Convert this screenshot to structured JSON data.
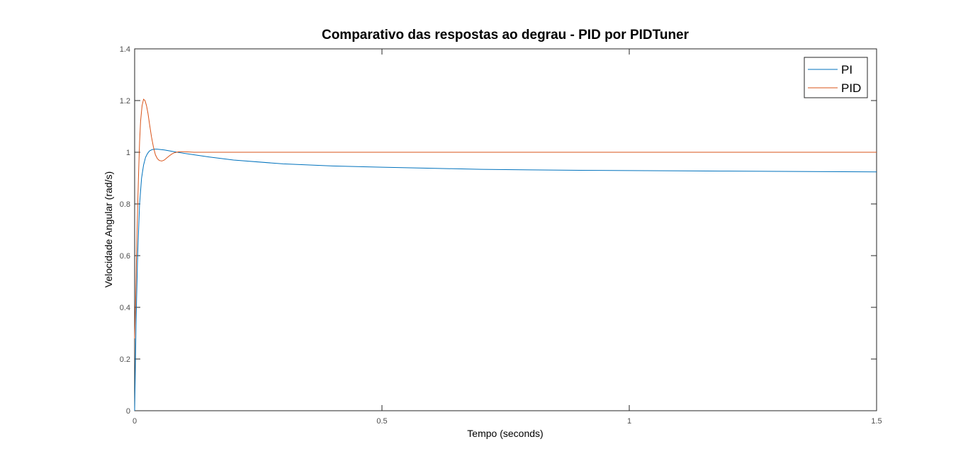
{
  "chart_data": {
    "type": "line",
    "title": "Comparativo das respostas ao degrau - PID por PIDTuner",
    "xlabel": "Tempo (seconds)",
    "ylabel": "Velocidade Angular (rad/s)",
    "xlim": [
      0,
      1.5
    ],
    "ylim": [
      0,
      1.4
    ],
    "xticks": [
      0,
      0.5,
      1,
      1.5
    ],
    "xtick_labels": [
      "0",
      "0.5",
      "1",
      "1.5"
    ],
    "yticks": [
      0,
      0.2,
      0.4,
      0.6,
      0.8,
      1,
      1.2,
      1.4
    ],
    "ytick_labels": [
      "0",
      "0.2",
      "0.4",
      "0.6",
      "0.8",
      "1",
      "1.2",
      "1.4"
    ],
    "grid": false,
    "legend_position": "top-right",
    "series": [
      {
        "name": "PI",
        "color": "#0072bd",
        "x": [
          0,
          0.003,
          0.006,
          0.01,
          0.014,
          0.018,
          0.022,
          0.026,
          0.03,
          0.035,
          0.04,
          0.045,
          0.05,
          0.06,
          0.08,
          0.1,
          0.15,
          0.2,
          0.3,
          0.4,
          0.5,
          0.6,
          0.7,
          0.8,
          0.9,
          1.0,
          1.1,
          1.2,
          1.3,
          1.4,
          1.5
        ],
        "y": [
          0,
          0.35,
          0.6,
          0.8,
          0.9,
          0.95,
          0.98,
          0.995,
          1.005,
          1.01,
          1.012,
          1.012,
          1.011,
          1.009,
          1.002,
          0.996,
          0.982,
          0.97,
          0.955,
          0.947,
          0.942,
          0.938,
          0.934,
          0.932,
          0.93,
          0.929,
          0.928,
          0.927,
          0.926,
          0.925,
          0.924
        ]
      },
      {
        "name": "PID",
        "color": "#d95319",
        "x": [
          0,
          0.002,
          0.004,
          0.006,
          0.008,
          0.01,
          0.012,
          0.015,
          0.018,
          0.021,
          0.024,
          0.027,
          0.03,
          0.034,
          0.038,
          0.042,
          0.046,
          0.05,
          0.055,
          0.06,
          0.065,
          0.07,
          0.075,
          0.08,
          0.09,
          0.1,
          0.12,
          0.15,
          0.2,
          0.3,
          0.5,
          1.0,
          1.5
        ],
        "y": [
          0.28,
          0.42,
          0.62,
          0.78,
          0.92,
          1.04,
          1.12,
          1.18,
          1.205,
          1.2,
          1.18,
          1.15,
          1.11,
          1.06,
          1.02,
          0.99,
          0.975,
          0.968,
          0.966,
          0.97,
          0.978,
          0.986,
          0.993,
          0.998,
          1.002,
          1.002,
          1.0,
          1.0,
          1.0,
          1.0,
          1.0,
          1.0,
          1.0
        ]
      }
    ]
  }
}
